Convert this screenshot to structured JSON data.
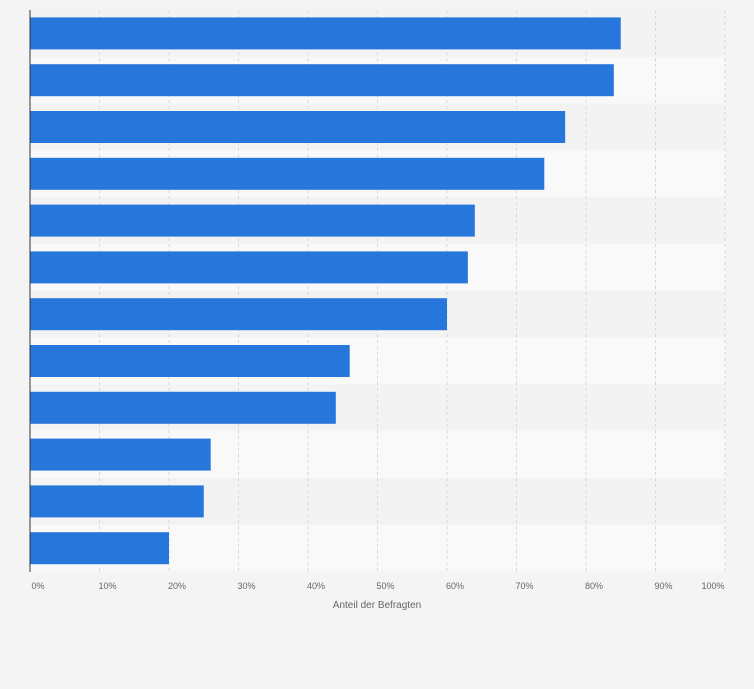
{
  "chart_data": {
    "type": "bar",
    "orientation": "horizontal",
    "title": "",
    "xlabel": "Anteil der Befragten",
    "ylabel": "",
    "xlim": [
      0,
      100
    ],
    "ticks": [
      "0%",
      "10%",
      "20%",
      "30%",
      "40%",
      "50%",
      "60%",
      "70%",
      "80%",
      "90%",
      "100%"
    ],
    "categories": [
      "",
      "",
      "",
      "",
      "",
      "",
      "",
      "",
      "",
      "",
      "",
      ""
    ],
    "values": [
      85,
      84,
      77,
      74,
      64,
      63,
      60,
      46,
      44,
      26,
      25,
      20
    ],
    "bar_color": "#2776dc",
    "band_colors": [
      "#f3f3f4",
      "#f9f9fa"
    ],
    "grid": true
  }
}
